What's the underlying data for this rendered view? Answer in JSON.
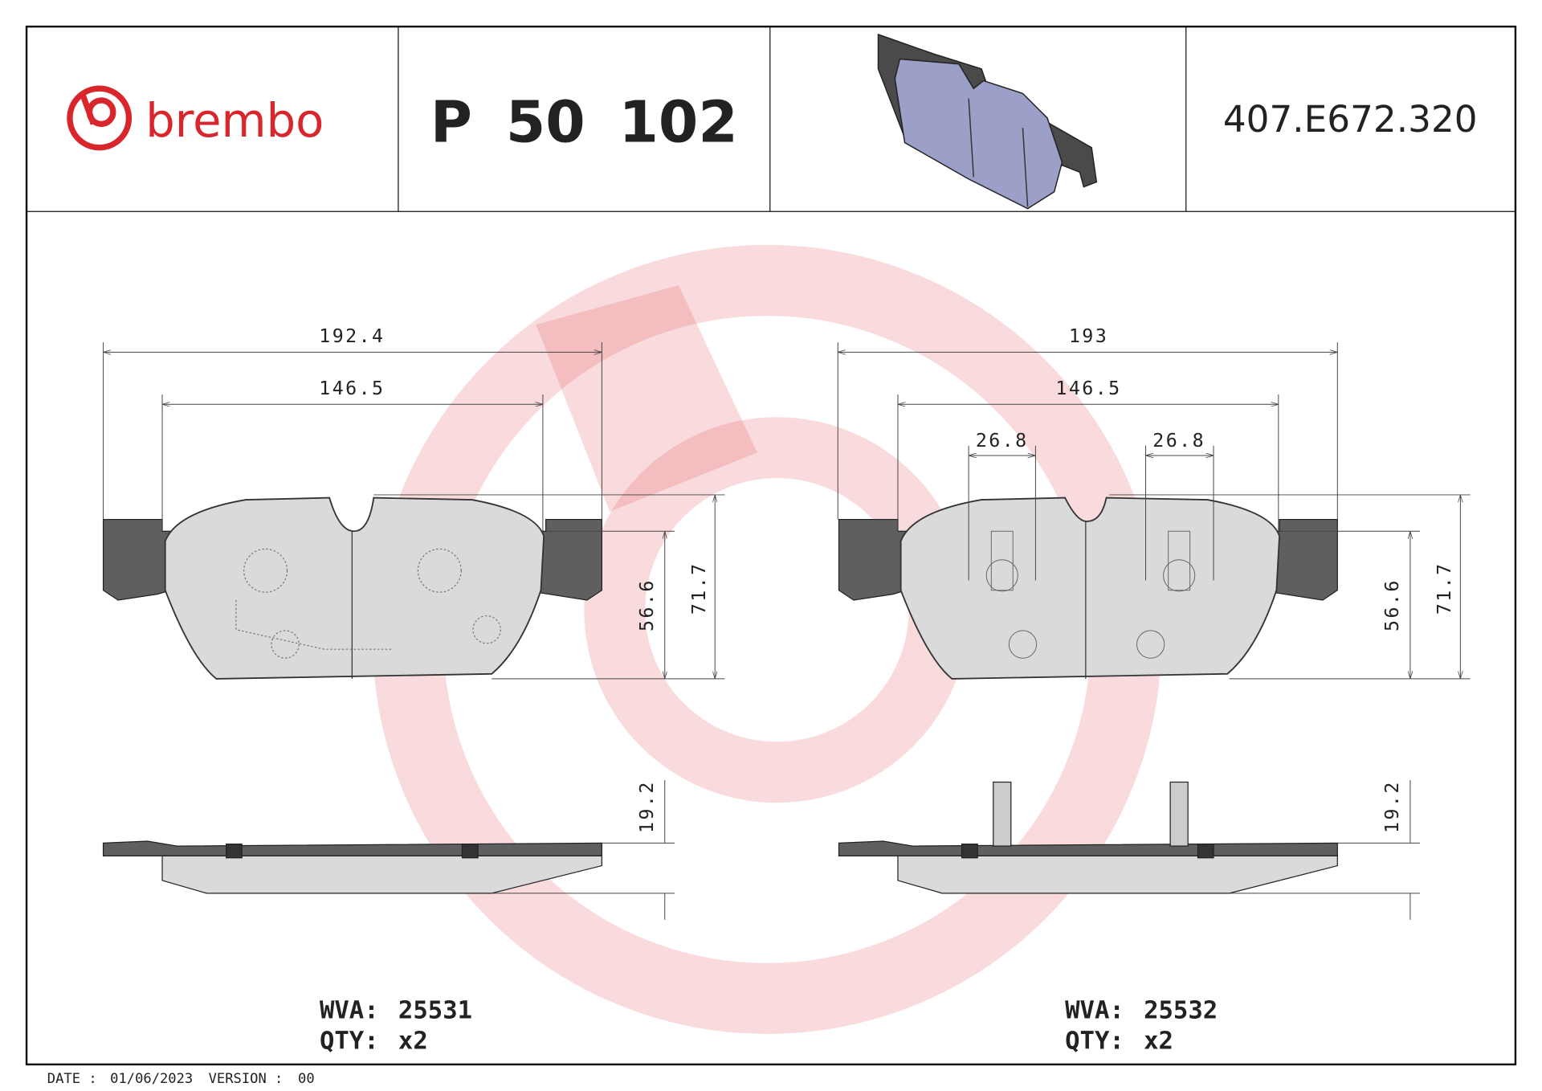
{
  "header": {
    "brand": "brembo",
    "part_number": "P 50 102",
    "code": "407.E672.320"
  },
  "left_pad": {
    "dimensions": {
      "overall_width": 192.4,
      "inner_width": 146.5,
      "height": 56.6,
      "overall_height": 71.7,
      "thickness": 19.2
    },
    "wva_label": "WVA:",
    "wva": 25531,
    "qty_label": "QTY:",
    "qty": "x2"
  },
  "right_pad": {
    "dimensions": {
      "overall_width": 193,
      "inner_width": 146.5,
      "clip_left": 26.8,
      "clip_right": 26.8,
      "height": 56.6,
      "overall_height": 71.7,
      "thickness": 19.2
    },
    "wva_label": "WVA:",
    "wva": 25532,
    "qty_label": "QTY:",
    "qty": "x2"
  },
  "footer": {
    "date_label": "DATE :",
    "date": "01/06/2023",
    "version_label": "VERSION :",
    "version": "00"
  }
}
